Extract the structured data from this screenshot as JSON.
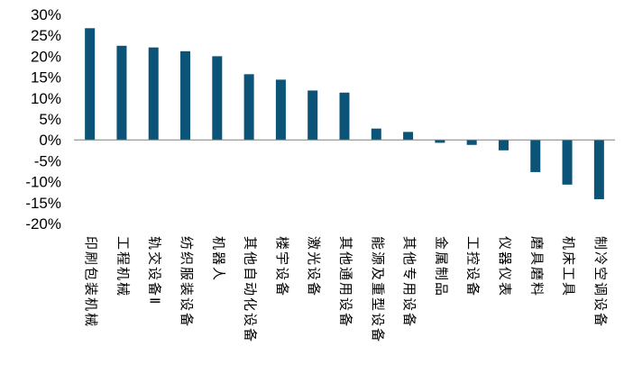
{
  "chart_data": {
    "type": "bar",
    "title": "",
    "xlabel": "",
    "ylabel": "",
    "ylim": [
      -20,
      30
    ],
    "yticks": [
      30,
      25,
      20,
      15,
      10,
      5,
      0,
      -5,
      -10,
      -15,
      -20
    ],
    "ytick_labels": [
      "30%",
      "25%",
      "20%",
      "15%",
      "10%",
      "5%",
      "0%",
      "-5%",
      "-10%",
      "-15%",
      "-20%"
    ],
    "grid": false,
    "legend": "none",
    "bar_color": "#0b5377",
    "categories": [
      "印刷包装机械",
      "工程机械",
      "轨交设备Ⅱ",
      "纺织服装设备",
      "机器人",
      "其他自动化设备",
      "楼宇设备",
      "激光设备",
      "其他通用设备",
      "能源及重型设备",
      "其他专用设备",
      "金属制品",
      "工控设备",
      "仪器仪表",
      "磨具磨料",
      "机床工具",
      "制冷空调设备"
    ],
    "values": [
      26.7,
      22.5,
      22.1,
      21.2,
      20.0,
      15.7,
      14.4,
      11.8,
      11.3,
      2.7,
      1.9,
      -0.7,
      -1.2,
      -2.5,
      -7.7,
      -10.7,
      -14.2
    ]
  }
}
